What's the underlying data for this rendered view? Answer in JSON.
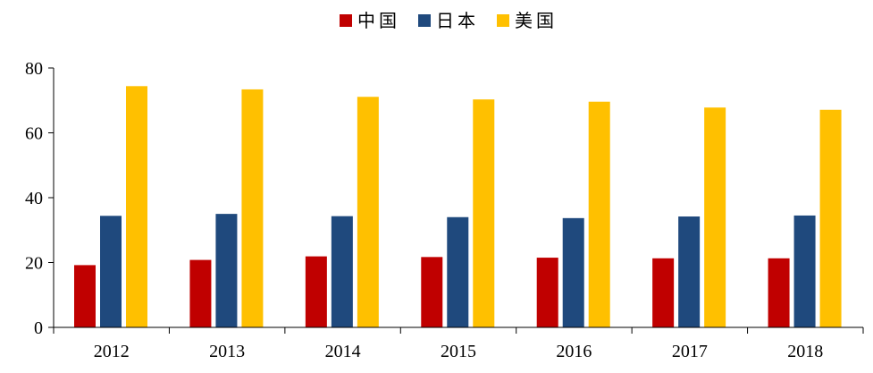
{
  "chart_data": {
    "type": "bar",
    "categories": [
      "2012",
      "2013",
      "2014",
      "2015",
      "2016",
      "2017",
      "2018"
    ],
    "series": [
      {
        "name": "中国",
        "color": "#c00000",
        "values": [
          19.2,
          20.8,
          21.9,
          21.7,
          21.5,
          21.3,
          21.3
        ]
      },
      {
        "name": "日本",
        "color": "#1f497d",
        "values": [
          34.4,
          35.0,
          34.3,
          34.0,
          33.7,
          34.2,
          34.5
        ]
      },
      {
        "name": "美国",
        "color": "#ffc000",
        "values": [
          74.4,
          73.4,
          71.1,
          70.3,
          69.6,
          67.8,
          67.1
        ]
      }
    ],
    "yticks": [
      0,
      20,
      40,
      60,
      80
    ],
    "ylim": [
      0,
      80
    ],
    "grid": false,
    "legend": "top-center"
  }
}
